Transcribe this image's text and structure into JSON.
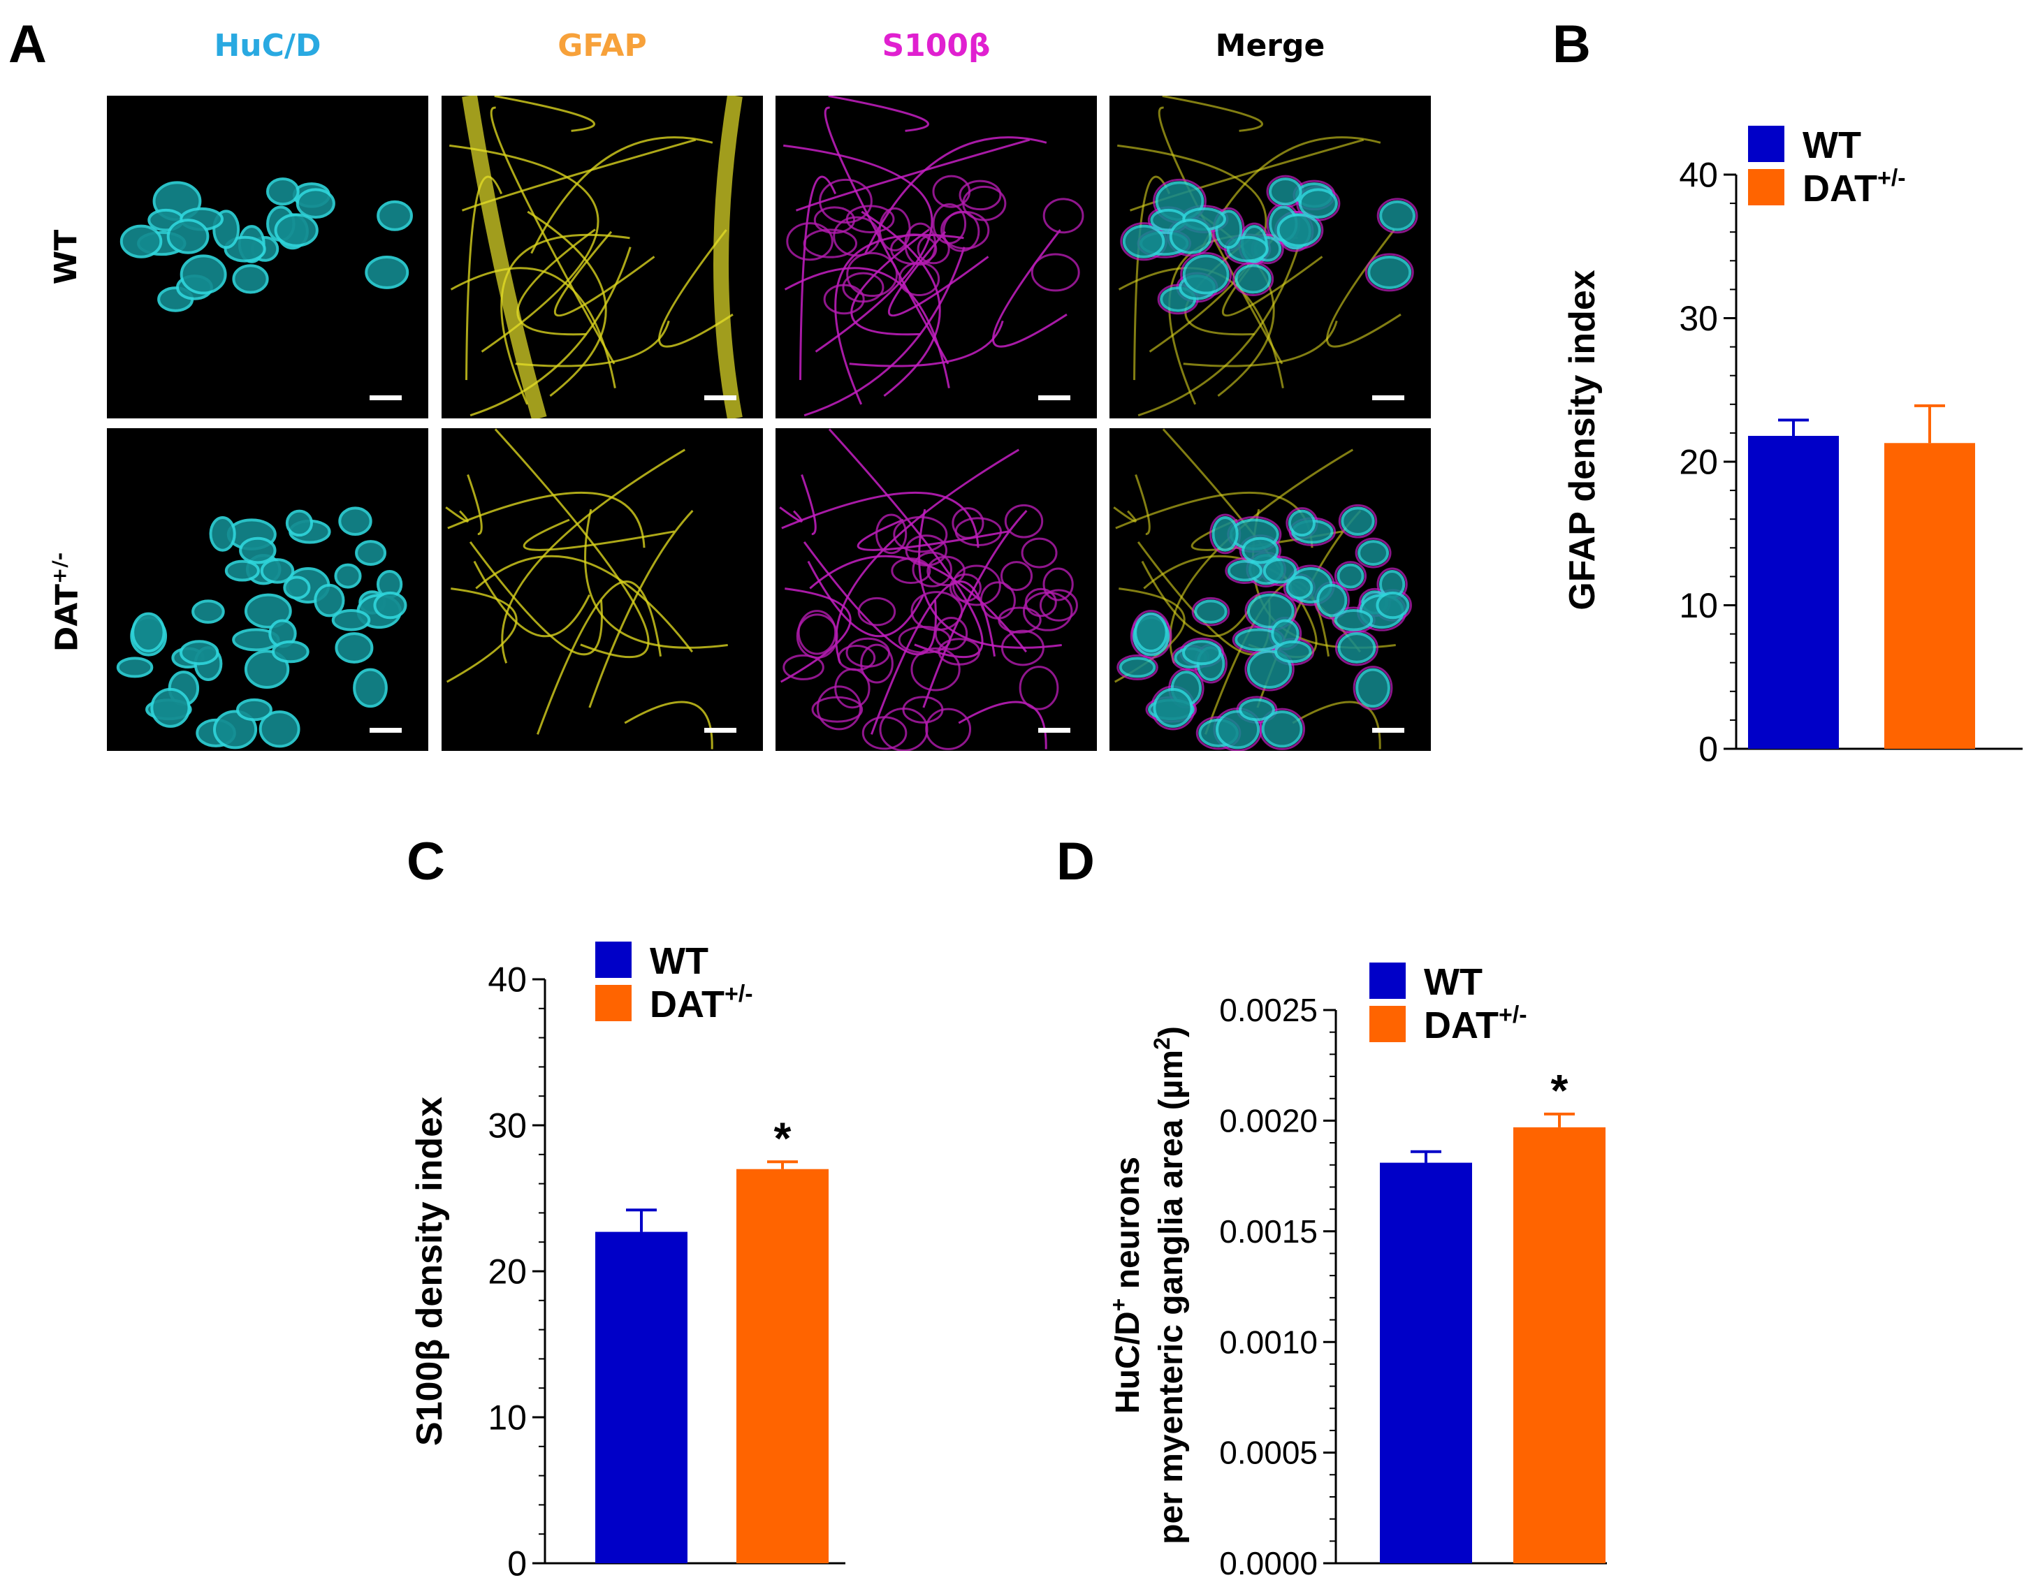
{
  "panel_a": {
    "letter": "A",
    "channels": [
      {
        "label": "HuC/D",
        "color": "#29a9e1"
      },
      {
        "label": "GFAP",
        "color": "#f7a13a"
      },
      {
        "label": "S100β",
        "color": "#e020d0"
      },
      {
        "label": "Merge",
        "color": "#000000"
      }
    ],
    "rows": [
      {
        "label": "WT"
      },
      {
        "label": "DAT",
        "sup": "+/-"
      }
    ]
  },
  "chart_data": [
    {
      "panel": "B",
      "type": "bar",
      "categories": [
        "WT",
        "DAT+/-"
      ],
      "values": [
        21.8,
        21.3
      ],
      "errors": [
        1.1,
        2.6
      ],
      "significance": [
        "",
        ""
      ],
      "ylabel": "GFAP density index",
      "ylim": [
        0,
        40
      ],
      "yticks": [
        "0",
        "10",
        "20",
        "30",
        "40"
      ],
      "legend": [
        {
          "name": "WT",
          "sup": ""
        },
        {
          "name": "DAT",
          "sup": "+/-"
        }
      ],
      "colors": [
        "#0000c8",
        "#ff6400"
      ]
    },
    {
      "panel": "C",
      "type": "bar",
      "categories": [
        "WT",
        "DAT+/-"
      ],
      "values": [
        22.7,
        27.0
      ],
      "errors": [
        1.5,
        0.5
      ],
      "significance": [
        "",
        "*"
      ],
      "ylabel": "S100β density index",
      "ylim": [
        0,
        40
      ],
      "yticks": [
        "0",
        "10",
        "20",
        "30",
        "40"
      ],
      "legend": [
        {
          "name": "WT",
          "sup": ""
        },
        {
          "name": "DAT",
          "sup": "+/-"
        }
      ],
      "colors": [
        "#0000c8",
        "#ff6400"
      ]
    },
    {
      "panel": "D",
      "type": "bar",
      "categories": [
        "WT",
        "DAT+/-"
      ],
      "values": [
        0.00181,
        0.00197
      ],
      "errors": [
        5e-05,
        6e-05
      ],
      "significance": [
        "",
        "*"
      ],
      "ylabel_lines": [
        {
          "text": "HuC/D",
          "sup": "+",
          "after": " neurons"
        },
        {
          "text": "per myenteric ganglia area (µm",
          "sup": "2",
          "after": ")"
        }
      ],
      "ylim": [
        0,
        0.0025
      ],
      "yticks": [
        "0.0000",
        "0.0005",
        "0.0010",
        "0.0015",
        "0.0020",
        "0.0025"
      ],
      "legend": [
        {
          "name": "WT",
          "sup": ""
        },
        {
          "name": "DAT",
          "sup": "+/-"
        }
      ],
      "colors": [
        "#0000c8",
        "#ff6400"
      ]
    }
  ]
}
